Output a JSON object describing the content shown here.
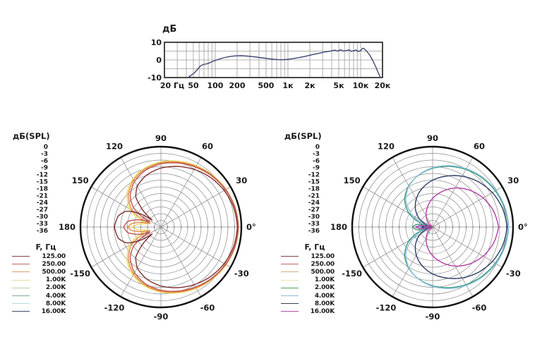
{
  "page": {
    "background": "#ffffff"
  },
  "chart_data": [
    {
      "id": "frequency-response",
      "type": "line",
      "title": "дБ",
      "xscale": "log",
      "xlim": [
        20,
        20000
      ],
      "ylim": [
        -10,
        10
      ],
      "grid": true,
      "x_ticks": [
        {
          "f": 20,
          "label": "20 Гц"
        },
        {
          "f": 50,
          "label": "50"
        },
        {
          "f": 100,
          "label": "100"
        },
        {
          "f": 200,
          "label": "200"
        },
        {
          "f": 500,
          "label": "500"
        },
        {
          "f": 1000,
          "label": "1к"
        },
        {
          "f": 2000,
          "label": "2к"
        },
        {
          "f": 5000,
          "label": "5к"
        },
        {
          "f": 10000,
          "label": "10к"
        },
        {
          "f": 20000,
          "label": "20к"
        }
      ],
      "y_ticks": [
        10,
        0,
        -10
      ],
      "grid_freqs": [
        30,
        40,
        50,
        60,
        70,
        80,
        90,
        100,
        200,
        300,
        400,
        500,
        600,
        700,
        800,
        900,
        1000,
        2000,
        3000,
        4000,
        5000,
        6000,
        7000,
        8000,
        9000,
        10000
      ],
      "grid_db": [
        -5,
        0,
        5
      ],
      "curve_color": "#3e4570",
      "grid_color": "#9b9b9b",
      "frame_color": "#1b1b1b",
      "series": [
        {
          "name": "frequency-response-curve",
          "points_hz_db": [
            [
              42,
              -10
            ],
            [
              47,
              -8.6
            ],
            [
              52,
              -7.2
            ],
            [
              57,
              -5.4
            ],
            [
              62,
              -3.6
            ],
            [
              67,
              -2.7
            ],
            [
              72,
              -2.4
            ],
            [
              78,
              -2.1
            ],
            [
              85,
              -1.5
            ],
            [
              95,
              -0.6
            ],
            [
              110,
              0.3
            ],
            [
              130,
              1.2
            ],
            [
              155,
              1.9
            ],
            [
              185,
              2.3
            ],
            [
              225,
              2.4
            ],
            [
              270,
              2.2
            ],
            [
              330,
              1.9
            ],
            [
              400,
              1.4
            ],
            [
              480,
              1.0
            ],
            [
              570,
              0.6
            ],
            [
              680,
              0.3
            ],
            [
              800,
              0.1
            ],
            [
              950,
              0.3
            ],
            [
              1150,
              0.7
            ],
            [
              1400,
              1.3
            ],
            [
              1750,
              2.1
            ],
            [
              2100,
              2.9
            ],
            [
              2600,
              3.7
            ],
            [
              3200,
              4.5
            ],
            [
              3900,
              5.1
            ],
            [
              4400,
              5.6
            ],
            [
              4800,
              5.0
            ],
            [
              5300,
              5.8
            ],
            [
              5800,
              5.0
            ],
            [
              6400,
              5.4
            ],
            [
              6900,
              5.7
            ],
            [
              7500,
              4.9
            ],
            [
              8100,
              5.3
            ],
            [
              8700,
              5.6
            ],
            [
              9300,
              4.8
            ],
            [
              10000,
              5.3
            ],
            [
              10700,
              6.7
            ],
            [
              11400,
              6.1
            ],
            [
              12300,
              4.6
            ],
            [
              13400,
              2.6
            ],
            [
              14800,
              -0.6
            ],
            [
              16200,
              -4.0
            ],
            [
              17600,
              -7.6
            ],
            [
              18800,
              -10
            ]
          ]
        }
      ]
    },
    {
      "id": "polar-low-frequencies",
      "type": "polar",
      "scale_title": "дБ(SPL)",
      "scale_ticks": [
        "0",
        "-3",
        "-6",
        "-9",
        "-12",
        "-15",
        "-18",
        "-21",
        "-24",
        "-27",
        "-30",
        "-33",
        "-36"
      ],
      "db_floor": -36,
      "ring_step_db": 3,
      "spoke_step_deg": 30,
      "grid_color": "#8f8f8f",
      "outer_ring_color": "#111111",
      "angle_labels": [
        {
          "deg": 90,
          "label": "90"
        },
        {
          "deg": 120,
          "label": "120"
        },
        {
          "deg": 60,
          "label": "60"
        },
        {
          "deg": 150,
          "label": "150"
        },
        {
          "deg": 30,
          "label": "30"
        },
        {
          "deg": 180,
          "label": "180"
        },
        {
          "deg": 0,
          "label": "0°"
        },
        {
          "deg": -150,
          "label": "-150"
        },
        {
          "deg": -30,
          "label": "-30"
        },
        {
          "deg": -120,
          "label": "-120"
        },
        {
          "deg": -60,
          "label": "-60"
        },
        {
          "deg": -90,
          "label": "-90"
        }
      ],
      "legend_title": "F, Гц",
      "legend": [
        {
          "label": "125.00",
          "color": "#8a4044"
        },
        {
          "label": "250.00",
          "color": "#c4606a"
        },
        {
          "label": "500.00",
          "color": "#d6a06a"
        },
        {
          "label": "1.00K",
          "color": "#e4dfa0"
        },
        {
          "label": "2.00K",
          "color": "#b6d4a5"
        },
        {
          "label": "4.00K",
          "color": "#85a7a1"
        },
        {
          "label": "8.00K",
          "color": "#b3dfe2"
        },
        {
          "label": "16.00K",
          "color": "#3f4b6d"
        }
      ],
      "series": [
        {
          "name": "1.00K",
          "color": "#ead95e",
          "points_deg_db": [
            [
              0,
              -1.3
            ],
            [
              15,
              -1.6
            ],
            [
              30,
              -2.3
            ],
            [
              45,
              -3.2
            ],
            [
              60,
              -4.3
            ],
            [
              75,
              -5.5
            ],
            [
              90,
              -6.8
            ],
            [
              105,
              -8.6
            ],
            [
              120,
              -11
            ],
            [
              135,
              -14.6
            ],
            [
              150,
              -19.8
            ],
            [
              160,
              -25.5
            ],
            [
              167,
              -30
            ],
            [
              172,
              -26
            ],
            [
              180,
              -23.2
            ]
          ]
        },
        {
          "name": "500.00",
          "color": "#e08c44",
          "points_deg_db": [
            [
              0,
              -1.3
            ],
            [
              15,
              -1.7
            ],
            [
              30,
              -2.4
            ],
            [
              45,
              -3.4
            ],
            [
              60,
              -4.6
            ],
            [
              75,
              -5.9
            ],
            [
              90,
              -7.2
            ],
            [
              105,
              -9
            ],
            [
              120,
              -11.6
            ],
            [
              135,
              -15.4
            ],
            [
              150,
              -21
            ],
            [
              158,
              -27.5
            ],
            [
              162,
              -31
            ],
            [
              167,
              -26.5
            ],
            [
              174,
              -22.5
            ],
            [
              180,
              -21.3
            ]
          ]
        },
        {
          "name": "250.00",
          "color": "#c0524e",
          "points_deg_db": [
            [
              0,
              -1.4
            ],
            [
              15,
              -1.8
            ],
            [
              30,
              -2.6
            ],
            [
              45,
              -3.7
            ],
            [
              60,
              -5
            ],
            [
              75,
              -6.3
            ],
            [
              90,
              -7.7
            ],
            [
              105,
              -9.6
            ],
            [
              120,
              -12.4
            ],
            [
              135,
              -16.5
            ],
            [
              145,
              -21
            ],
            [
              152,
              -27
            ],
            [
              156,
              -30.5
            ],
            [
              161,
              -26
            ],
            [
              170,
              -21
            ],
            [
              180,
              -19.3
            ]
          ]
        },
        {
          "name": "125.00",
          "color": "#7d2f30",
          "points_deg_db": [
            [
              0,
              -1.8
            ],
            [
              15,
              -2.3
            ],
            [
              30,
              -3.3
            ],
            [
              45,
              -4.6
            ],
            [
              60,
              -6.2
            ],
            [
              75,
              -7.9
            ],
            [
              90,
              -9.6
            ],
            [
              105,
              -11.8
            ],
            [
              120,
              -14.8
            ],
            [
              130,
              -18.5
            ],
            [
              138,
              -26
            ],
            [
              142,
              -31
            ],
            [
              147,
              -25
            ],
            [
              155,
              -19
            ],
            [
              165,
              -16.3
            ],
            [
              180,
              -15.2
            ]
          ]
        }
      ]
    },
    {
      "id": "polar-high-frequencies",
      "type": "polar",
      "scale_title": "дБ(SPL)",
      "scale_ticks": [
        "0",
        "-3",
        "-6",
        "-9",
        "-12",
        "-15",
        "-18",
        "-21",
        "-24",
        "-27",
        "-30",
        "-33",
        "-36"
      ],
      "db_floor": -36,
      "ring_step_db": 3,
      "spoke_step_deg": 30,
      "grid_color": "#8f8f8f",
      "outer_ring_color": "#111111",
      "angle_labels": [
        {
          "deg": 90,
          "label": "90"
        },
        {
          "deg": 120,
          "label": "120"
        },
        {
          "deg": 60,
          "label": "60"
        },
        {
          "deg": 150,
          "label": "150"
        },
        {
          "deg": 30,
          "label": "30"
        },
        {
          "deg": 180,
          "label": "180"
        },
        {
          "deg": 0,
          "label": "0°"
        },
        {
          "deg": -150,
          "label": "-150"
        },
        {
          "deg": -30,
          "label": "-30"
        },
        {
          "deg": -120,
          "label": "-120"
        },
        {
          "deg": -60,
          "label": "-60"
        },
        {
          "deg": -90,
          "label": "-90"
        }
      ],
      "legend_title": "F, Гц",
      "legend": [
        {
          "label": "125.00",
          "color": "#8a4044"
        },
        {
          "label": "250.00",
          "color": "#c4606a"
        },
        {
          "label": "500.00",
          "color": "#d6ab80"
        },
        {
          "label": "1.00K",
          "color": "#eae6b4"
        },
        {
          "label": "2.00K",
          "color": "#4f9d63"
        },
        {
          "label": "4.00K",
          "color": "#93bedd"
        },
        {
          "label": "8.00K",
          "color": "#3a424f"
        },
        {
          "label": "16.00K",
          "color": "#a855a0"
        }
      ],
      "series": [
        {
          "name": "2.00K",
          "color": "#3a9b7a",
          "points_deg_db": [
            [
              0,
              -2.2
            ],
            [
              15,
              -2.7
            ],
            [
              30,
              -3.6
            ],
            [
              45,
              -4.8
            ],
            [
              60,
              -6.2
            ],
            [
              75,
              -7.9
            ],
            [
              90,
              -9.7
            ],
            [
              105,
              -11.9
            ],
            [
              120,
              -14.6
            ],
            [
              135,
              -18.2
            ],
            [
              150,
              -23.8
            ],
            [
              158,
              -28
            ],
            [
              164,
              -32.5
            ],
            [
              170,
              -29
            ],
            [
              176,
              -27.6
            ],
            [
              180,
              -27.2
            ]
          ]
        },
        {
          "name": "4.00K",
          "color": "#8cc1e2",
          "points_deg_db": [
            [
              0,
              -2
            ],
            [
              15,
              -2.4
            ],
            [
              30,
              -3.2
            ],
            [
              45,
              -4.4
            ],
            [
              60,
              -5.8
            ],
            [
              75,
              -7.5
            ],
            [
              90,
              -9.4
            ],
            [
              105,
              -11.8
            ],
            [
              120,
              -14.8
            ],
            [
              135,
              -19
            ],
            [
              150,
              -25.6
            ],
            [
              160,
              -31
            ],
            [
              167,
              -35
            ],
            [
              172,
              -31.5
            ],
            [
              180,
              -29.7
            ]
          ]
        },
        {
          "name": "8.00K",
          "color": "#2e3c67",
          "points_deg_db": [
            [
              0,
              -2.7
            ],
            [
              15,
              -3.6
            ],
            [
              30,
              -5.1
            ],
            [
              45,
              -7.2
            ],
            [
              60,
              -9.7
            ],
            [
              75,
              -12.4
            ],
            [
              90,
              -15
            ],
            [
              105,
              -18
            ],
            [
              120,
              -21.4
            ],
            [
              135,
              -25.2
            ],
            [
              150,
              -29.6
            ],
            [
              160,
              -33
            ],
            [
              168,
              -35.5
            ],
            [
              173,
              -32.5
            ],
            [
              180,
              -31
            ]
          ]
        },
        {
          "name": "16.00K",
          "color": "#b23ca6",
          "points_deg_db": [
            [
              0,
              -6.5
            ],
            [
              15,
              -7.8
            ],
            [
              30,
              -9.9
            ],
            [
              45,
              -12.6
            ],
            [
              60,
              -15.8
            ],
            [
              75,
              -19.5
            ],
            [
              90,
              -23.2
            ],
            [
              105,
              -26.9
            ],
            [
              120,
              -30.3
            ],
            [
              135,
              -33.2
            ],
            [
              147,
              -35.6
            ],
            [
              157,
              -36
            ],
            [
              166,
              -34.5
            ],
            [
              172,
              -31
            ],
            [
              180,
              -28.3
            ]
          ]
        }
      ]
    }
  ]
}
